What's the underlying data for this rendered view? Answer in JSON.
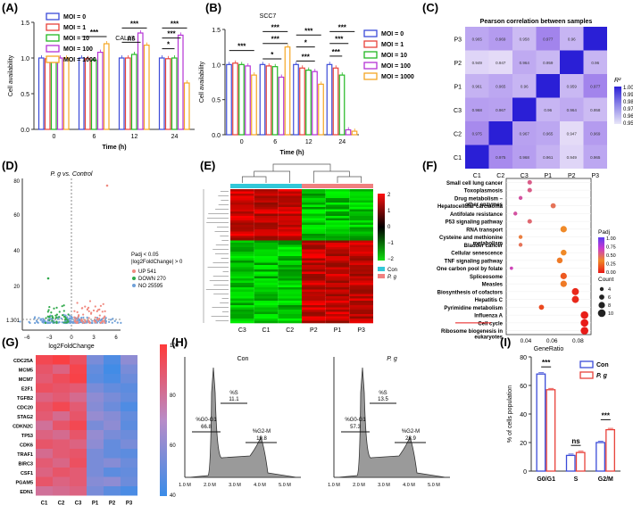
{
  "colors": {
    "moi0": "#3b4bd8",
    "moi1": "#e8413a",
    "moi10": "#22b822",
    "moi100": "#b533d6",
    "moi1000": "#f5a623",
    "con": "#3b4bd8",
    "pg": "#e8413a",
    "up": "#f08a80",
    "down": "#2fa84a",
    "no": "#6fa0d8"
  },
  "panels": {
    "A": "(A)",
    "B": "(B)",
    "C": "(C)",
    "D": "(D)",
    "E": "(E)",
    "F": "(F)",
    "G": "(G)",
    "H": "(H)",
    "I": "(I)"
  },
  "chart_data": [
    {
      "id": "A",
      "type": "bar",
      "title": "CAL27",
      "xlabel": "Time (h)",
      "ylabel": "Cell availability",
      "ylim": [
        0,
        1.5
      ],
      "yticks": [
        "0.0",
        "0.5",
        "1.0",
        "1.5"
      ],
      "categories": [
        "0",
        "6",
        "12",
        "24"
      ],
      "series": [
        {
          "name": "MOI = 0",
          "values": [
            1.0,
            1.0,
            1.0,
            1.0
          ]
        },
        {
          "name": "MOI = 1",
          "values": [
            0.99,
            0.99,
            1.0,
            0.99
          ]
        },
        {
          "name": "MOI = 10",
          "values": [
            0.98,
            0.97,
            1.05,
            1.0
          ]
        },
        {
          "name": "MOI = 100",
          "values": [
            1.0,
            1.08,
            1.35,
            1.32
          ]
        },
        {
          "name": "MOI = 1000",
          "values": [
            1.0,
            1.2,
            1.18,
            0.65
          ]
        }
      ],
      "sig": [
        {
          "cat": 1,
          "from": 0,
          "to": 4,
          "label": "***",
          "y": 1.3
        },
        {
          "cat": 2,
          "from": 0,
          "to": 3,
          "label": "ns",
          "y": 1.22
        },
        {
          "cat": 2,
          "from": 0,
          "to": 4,
          "label": "***",
          "y": 1.42
        },
        {
          "cat": 3,
          "from": 0,
          "to": 2,
          "label": "*",
          "y": 1.13
        },
        {
          "cat": 3,
          "from": 0,
          "to": 3,
          "label": "***",
          "y": 1.28
        },
        {
          "cat": 3,
          "from": 0,
          "to": 4,
          "label": "***",
          "y": 1.42
        }
      ]
    },
    {
      "id": "B",
      "type": "bar",
      "title": "SCC7",
      "xlabel": "Time (h)",
      "ylabel": "Cell availability",
      "ylim": [
        0,
        1.5
      ],
      "yticks": [
        "0.0",
        "0.5",
        "1.0",
        "1.5"
      ],
      "categories": [
        "0",
        "6",
        "12",
        "24"
      ],
      "series": [
        {
          "name": "MOI = 0",
          "values": [
            1.0,
            1.0,
            1.0,
            1.0
          ]
        },
        {
          "name": "MOI = 1",
          "values": [
            1.02,
            0.98,
            0.95,
            0.95
          ]
        },
        {
          "name": "MOI = 10",
          "values": [
            1.0,
            0.97,
            0.92,
            0.85
          ]
        },
        {
          "name": "MOI = 100",
          "values": [
            0.98,
            0.82,
            0.9,
            0.07
          ]
        },
        {
          "name": "MOI = 1000",
          "values": [
            0.85,
            1.25,
            0.72,
            0.05
          ]
        }
      ],
      "sig": [
        {
          "cat": 0,
          "from": 0,
          "to": 4,
          "label": "***",
          "y": 1.2
        },
        {
          "cat": 1,
          "from": 0,
          "to": 3,
          "label": "*",
          "y": 1.08
        },
        {
          "cat": 1,
          "from": 0,
          "to": 4,
          "label": "***",
          "y": 1.3
        },
        {
          "cat": 1,
          "from": 0,
          "to": 4,
          "label": "***",
          "y": 1.47
        },
        {
          "cat": 2,
          "from": 0,
          "to": 3,
          "label": "***",
          "y": 1.05
        },
        {
          "cat": 2,
          "from": 0,
          "to": 3,
          "label": "*",
          "y": 1.25
        },
        {
          "cat": 2,
          "from": 0,
          "to": 4,
          "label": "***",
          "y": 1.42
        },
        {
          "cat": 3,
          "from": 0,
          "to": 2,
          "label": "***",
          "y": 1.12
        },
        {
          "cat": 3,
          "from": 0,
          "to": 3,
          "label": "***",
          "y": 1.3
        },
        {
          "cat": 3,
          "from": 0,
          "to": 4,
          "label": "***",
          "y": 1.47
        }
      ]
    },
    {
      "id": "C",
      "type": "heatmap",
      "title": "Pearson correlation between samples",
      "rows": [
        "P3",
        "P2",
        "P1",
        "C3",
        "C2",
        "C1"
      ],
      "cols": [
        "C1",
        "C2",
        "C3",
        "P1",
        "P2",
        "P3"
      ],
      "values": [
        [
          "0.965",
          "0.969",
          "0.958",
          "0.977",
          "0.96",
          ""
        ],
        [
          "0.949",
          "0.947",
          "0.964",
          "0.959",
          "",
          "0.96"
        ],
        [
          "0.961",
          "0.965",
          "0.96",
          "",
          "0.959",
          "0.977"
        ],
        [
          "0.968",
          "0.967",
          "",
          "0.96",
          "0.964",
          "0.958"
        ],
        [
          "0.975",
          "",
          "0.967",
          "0.965",
          "0.947",
          "0.969"
        ],
        [
          "",
          "0.975",
          "0.968",
          "0.961",
          "0.949",
          "0.965"
        ]
      ],
      "legend_title": "R²",
      "legend_ticks": [
        "1.00",
        "0.99",
        "0.98",
        "0.97",
        "0.96",
        "0.95"
      ]
    },
    {
      "id": "D",
      "type": "scatter",
      "title": "P. g vs. Control",
      "xlabel": "log2FoldChange",
      "ylabel": "",
      "xticks": [
        "−6",
        "−3",
        "0",
        "3",
        "6"
      ],
      "yticks": [
        "1.301",
        "20",
        "40",
        "60",
        "80"
      ],
      "legend": [
        "Padj < 0.05",
        "|log2FoldChange| > 0",
        "UP 541",
        "DOWN 270",
        "NO 25595"
      ]
    },
    {
      "id": "E",
      "type": "heatmap",
      "cols": [
        "C3",
        "C1",
        "C2",
        "P2",
        "P1",
        "P3"
      ],
      "legend_ticks": [
        "2",
        "1",
        "0",
        "−1",
        "−2"
      ],
      "groups": [
        "Con",
        "P. g"
      ]
    },
    {
      "id": "F",
      "type": "scatter",
      "xlabel": "GeneRatio",
      "xticks": [
        "0.04",
        "0.06",
        "0.08"
      ],
      "terms": [
        "Small cell lung cancer",
        "Toxoplasmosis",
        "Drug metabolism – other enzymes",
        "Hepatocellular carcinoma",
        "Antifolate resistance",
        "P53 signaling pathway",
        "RNA transport",
        "Cysteine and methionine metabolism",
        "Bladder cancer",
        "Cellular senescence",
        "TNF signaling pathway",
        "One carbon pool by folate",
        "Spliceosome",
        "Measles",
        "Biosynthesis of cofactors",
        "Hepatitis C",
        "Pyrimidine metabolism",
        "Influenza A",
        "Cell cycle",
        "Ribosome biogenesis in eukaryotes"
      ],
      "gene_ratio": [
        0.043,
        0.043,
        0.036,
        0.061,
        0.032,
        0.043,
        0.069,
        0.036,
        0.036,
        0.069,
        0.066,
        0.029,
        0.069,
        0.069,
        0.078,
        0.078,
        0.052,
        0.085,
        0.085,
        0.085
      ],
      "padj": [
        0.55,
        0.55,
        0.6,
        0.45,
        0.6,
        0.5,
        0.35,
        0.4,
        0.45,
        0.35,
        0.3,
        0.65,
        0.2,
        0.3,
        0.05,
        0.05,
        0.15,
        0.02,
        0.01,
        0.01
      ],
      "count": [
        5,
        5,
        4,
        6,
        4,
        5,
        8,
        4,
        4,
        7,
        7,
        3,
        8,
        8,
        9,
        9,
        6,
        10,
        10,
        10
      ],
      "padj_title": "Padj",
      "padj_ticks": [
        "1.00",
        "0.75",
        "0.50",
        "0.25",
        "0.00"
      ],
      "count_title": "Count",
      "count_ticks": [
        "4",
        "6",
        "8",
        "10"
      ]
    },
    {
      "id": "G",
      "type": "heatmap",
      "rows": [
        "CDC25A",
        "MCM5",
        "MCM7",
        "E2F1",
        "TGFB2",
        "CDC20",
        "STAG2",
        "CDKN2C",
        "TP53",
        "CDK6",
        "TRAF1",
        "BIRC3",
        "CSF1",
        "PGAM5",
        "EDN1"
      ],
      "cols": [
        "C1",
        "C2",
        "C3",
        "P1",
        "P2",
        "P3"
      ],
      "values": [
        [
          95,
          98,
          92,
          55,
          45,
          60
        ],
        [
          90,
          85,
          96,
          50,
          42,
          55
        ],
        [
          88,
          93,
          97,
          48,
          44,
          52
        ],
        [
          92,
          90,
          88,
          55,
          50,
          48
        ],
        [
          85,
          88,
          82,
          60,
          55,
          50
        ],
        [
          90,
          95,
          88,
          58,
          52,
          45
        ],
        [
          88,
          82,
          90,
          62,
          58,
          50
        ],
        [
          80,
          90,
          95,
          55,
          60,
          48
        ],
        [
          85,
          82,
          90,
          62,
          55,
          52
        ],
        [
          90,
          88,
          85,
          60,
          50,
          55
        ],
        [
          82,
          88,
          90,
          55,
          50,
          48
        ],
        [
          88,
          84,
          92,
          55,
          58,
          52
        ],
        [
          85,
          90,
          88,
          55,
          48,
          50
        ],
        [
          90,
          85,
          88,
          58,
          60,
          52
        ],
        [
          80,
          82,
          85,
          55,
          48,
          44
        ]
      ],
      "legend_ticks": [
        "100",
        "80",
        "60",
        "40"
      ]
    },
    {
      "id": "H",
      "type": "area",
      "histograms": [
        {
          "title": "Con",
          "g0": "%G0-G1",
          "g0v": "66.8",
          "s": "%S",
          "sv": "11.1",
          "g2": "%G2-M",
          "g2v": "19.8"
        },
        {
          "title": "P. g",
          "g0": "%G0-G1",
          "g0v": "57.3",
          "s": "%S",
          "sv": "13.5",
          "g2": "%G2-M",
          "g2v": "28.9"
        }
      ],
      "xticks": [
        "1.0 M",
        "2.0 M",
        "3.0 M",
        "4.0 M",
        "5.0 M"
      ]
    },
    {
      "id": "I",
      "type": "bar",
      "ylabel": "% of cells population",
      "ylim": [
        0,
        80
      ],
      "yticks": [
        "0",
        "20",
        "40",
        "60",
        "80"
      ],
      "categories": [
        "G0/G1",
        "S",
        "G2/M"
      ],
      "series": [
        {
          "name": "Con",
          "values": [
            68,
            11,
            20
          ]
        },
        {
          "name": "P. g",
          "values": [
            57,
            13,
            29
          ]
        }
      ],
      "sig": [
        {
          "cat": 0,
          "label": "***",
          "y": 73
        },
        {
          "cat": 1,
          "label": "ns",
          "y": 18
        },
        {
          "cat": 2,
          "label": "***",
          "y": 36
        }
      ]
    }
  ]
}
